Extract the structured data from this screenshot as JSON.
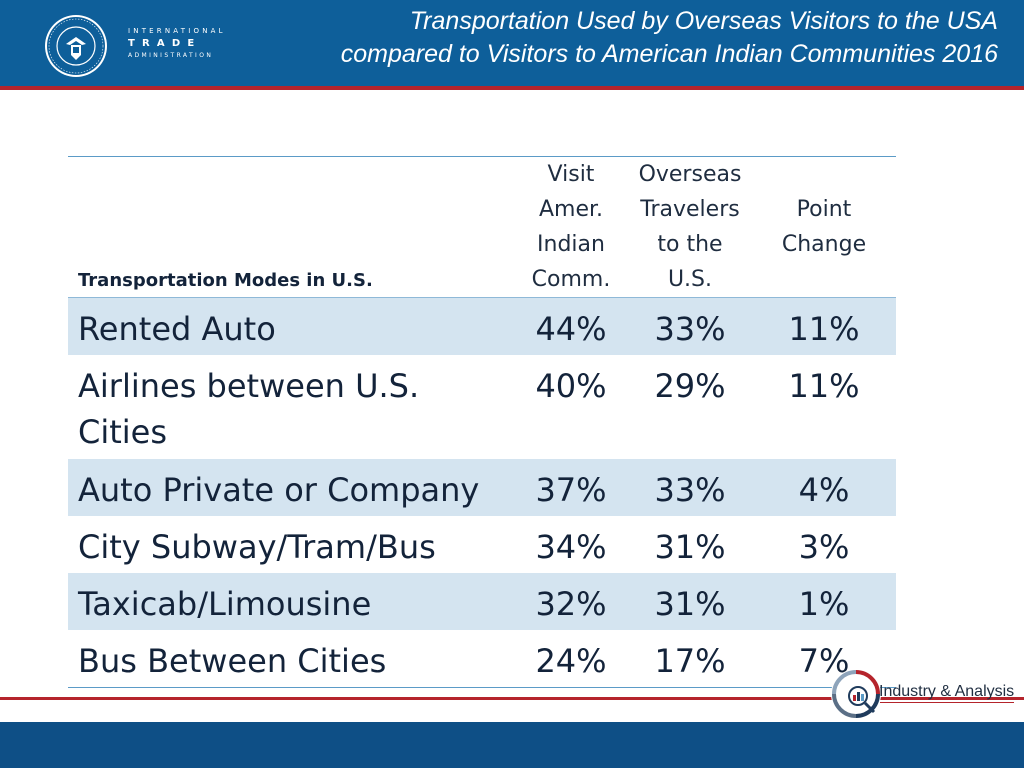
{
  "header": {
    "agency_lines": [
      "INTERNATIONAL",
      "TRADE",
      "ADMINISTRATION"
    ],
    "title_line1": "Transportation Used by Overseas Visitors to the USA",
    "title_line2": "compared to Visitors to American Indian Communities 2016"
  },
  "table": {
    "header_mode": "Transportation Modes in U.S.",
    "header_cols": [
      [
        "Visit",
        "Amer.",
        "Indian",
        "Comm."
      ],
      [
        "Overseas",
        "Travelers",
        "to the",
        "U.S."
      ],
      [
        "Point",
        "Change"
      ]
    ],
    "rows": [
      {
        "mode": "Rented Auto",
        "aic": "44%",
        "overseas": "33%",
        "change": "11%"
      },
      {
        "mode": "Airlines between U.S. Cities",
        "aic": "40%",
        "overseas": "29%",
        "change": "11%"
      },
      {
        "mode": "Auto Private or Company",
        "aic": "37%",
        "overseas": "33%",
        "change": "4%"
      },
      {
        "mode": "City Subway/Tram/Bus",
        "aic": "34%",
        "overseas": "31%",
        "change": "3%"
      },
      {
        "mode": "Taxicab/Limousine",
        "aic": "32%",
        "overseas": "31%",
        "change": "1%"
      },
      {
        "mode": "Bus Between Cities",
        "aic": "24%",
        "overseas": "17%",
        "change": "7%"
      }
    ]
  },
  "footer": {
    "brand": "Industry & Analysis"
  },
  "colors": {
    "header_blue": "#0e5f9a",
    "accent_red": "#b5242c",
    "row_band": "#d4e4f0",
    "footer_blue": "#0e4f86"
  },
  "icons": [
    "commerce-seal-icon",
    "industry-analysis-logo-icon"
  ]
}
